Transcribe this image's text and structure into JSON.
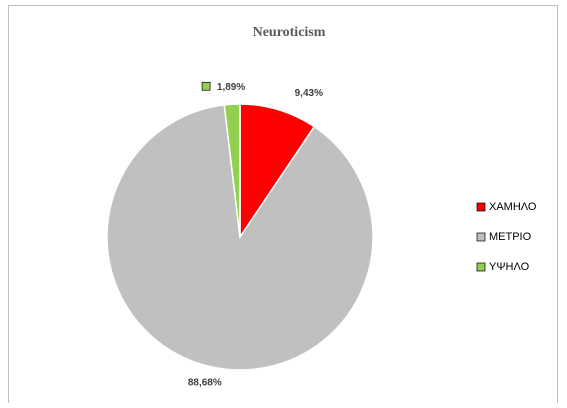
{
  "chart_data": {
    "type": "pie",
    "title": "Neuroticism",
    "categories": [
      "ΧΑΜΗΛΟ",
      "ΜΕΤΡΙΟ",
      "ΥΨΗΛΟ"
    ],
    "values": [
      9.43,
      88.68,
      1.89
    ],
    "value_labels": [
      "9,43%",
      "88,68%",
      "1,89%"
    ],
    "colors": [
      "#ff0000",
      "#c0c0c0",
      "#92d050"
    ],
    "legend": "right"
  }
}
